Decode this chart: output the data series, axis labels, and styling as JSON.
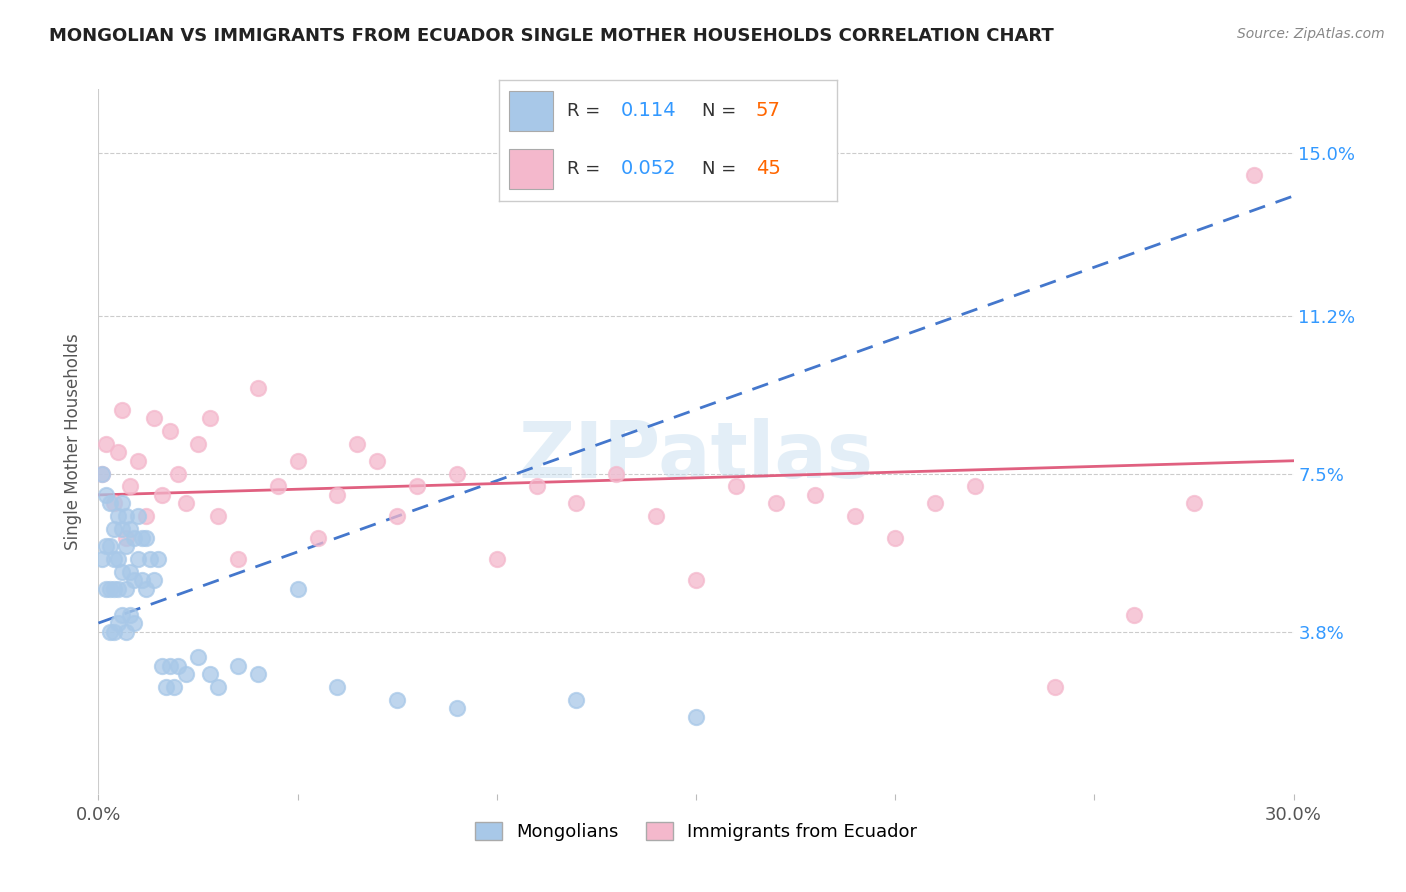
{
  "title": "MONGOLIAN VS IMMIGRANTS FROM ECUADOR SINGLE MOTHER HOUSEHOLDS CORRELATION CHART",
  "source": "Source: ZipAtlas.com",
  "ylabel": "Single Mother Households",
  "xlim": [
    0.0,
    0.3
  ],
  "ylim": [
    0.0,
    0.165
  ],
  "xticks": [
    0.0,
    0.05,
    0.1,
    0.15,
    0.2,
    0.25,
    0.3
  ],
  "xtick_labels": [
    "0.0%",
    "",
    "",
    "",
    "",
    "",
    "30.0%"
  ],
  "ytick_labels_right": [
    "",
    "3.8%",
    "7.5%",
    "11.2%",
    "15.0%"
  ],
  "ytick_positions_right": [
    0.0,
    0.038,
    0.075,
    0.112,
    0.15
  ],
  "mongolian_R": "0.114",
  "mongolian_N": "57",
  "ecuador_R": "0.052",
  "ecuador_N": "45",
  "mongolian_color": "#a8c8e8",
  "ecuador_color": "#f4b8cc",
  "mongolian_line_color": "#4477cc",
  "ecuador_line_color": "#e06080",
  "legend_R_color": "#3399ff",
  "legend_N_color": "#ff6600",
  "watermark_color": "#c8dff0",
  "background_color": "#ffffff",
  "mongolian_x": [
    0.001,
    0.001,
    0.002,
    0.002,
    0.002,
    0.003,
    0.003,
    0.003,
    0.003,
    0.004,
    0.004,
    0.004,
    0.004,
    0.005,
    0.005,
    0.005,
    0.005,
    0.006,
    0.006,
    0.006,
    0.006,
    0.007,
    0.007,
    0.007,
    0.007,
    0.008,
    0.008,
    0.008,
    0.009,
    0.009,
    0.009,
    0.01,
    0.01,
    0.011,
    0.011,
    0.012,
    0.012,
    0.013,
    0.014,
    0.015,
    0.016,
    0.017,
    0.018,
    0.019,
    0.02,
    0.022,
    0.025,
    0.028,
    0.03,
    0.035,
    0.04,
    0.05,
    0.06,
    0.075,
    0.09,
    0.12,
    0.15
  ],
  "mongolian_y": [
    0.075,
    0.055,
    0.07,
    0.058,
    0.048,
    0.068,
    0.058,
    0.048,
    0.038,
    0.062,
    0.055,
    0.048,
    0.038,
    0.065,
    0.055,
    0.048,
    0.04,
    0.068,
    0.062,
    0.052,
    0.042,
    0.065,
    0.058,
    0.048,
    0.038,
    0.062,
    0.052,
    0.042,
    0.06,
    0.05,
    0.04,
    0.065,
    0.055,
    0.06,
    0.05,
    0.06,
    0.048,
    0.055,
    0.05,
    0.055,
    0.03,
    0.025,
    0.03,
    0.025,
    0.03,
    0.028,
    0.032,
    0.028,
    0.025,
    0.03,
    0.028,
    0.048,
    0.025,
    0.022,
    0.02,
    0.022,
    0.018
  ],
  "ecuador_x": [
    0.001,
    0.002,
    0.004,
    0.005,
    0.006,
    0.007,
    0.008,
    0.01,
    0.012,
    0.014,
    0.016,
    0.018,
    0.02,
    0.022,
    0.025,
    0.028,
    0.03,
    0.035,
    0.04,
    0.045,
    0.05,
    0.055,
    0.06,
    0.065,
    0.07,
    0.075,
    0.08,
    0.09,
    0.1,
    0.11,
    0.12,
    0.13,
    0.14,
    0.15,
    0.16,
    0.17,
    0.18,
    0.19,
    0.2,
    0.21,
    0.22,
    0.24,
    0.26,
    0.275,
    0.29
  ],
  "ecuador_y": [
    0.075,
    0.082,
    0.068,
    0.08,
    0.09,
    0.06,
    0.072,
    0.078,
    0.065,
    0.088,
    0.07,
    0.085,
    0.075,
    0.068,
    0.082,
    0.088,
    0.065,
    0.055,
    0.095,
    0.072,
    0.078,
    0.06,
    0.07,
    0.082,
    0.078,
    0.065,
    0.072,
    0.075,
    0.055,
    0.072,
    0.068,
    0.075,
    0.065,
    0.05,
    0.072,
    0.068,
    0.07,
    0.065,
    0.06,
    0.068,
    0.072,
    0.025,
    0.042,
    0.068,
    0.145
  ]
}
